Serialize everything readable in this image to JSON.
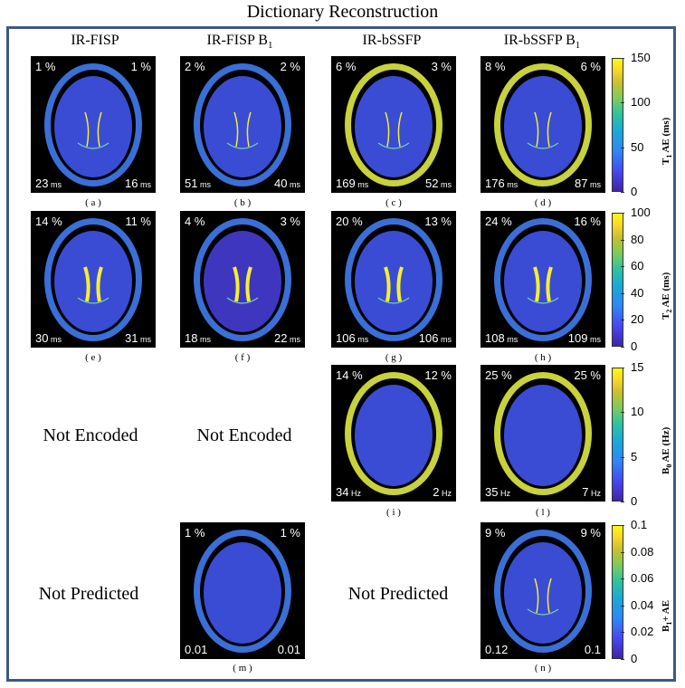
{
  "title": "Dictionary Reconstruction",
  "columns": [
    "IR-FISP",
    "IR-FISP B",
    "IR-bSSFP",
    "IR-bSSFP B"
  ],
  "column_subscript": "1",
  "rows": [
    [
      {
        "tl": "1 %",
        "tr": "1 %",
        "bl": "23",
        "br": "16",
        "unit": "ms",
        "cap": "( a )"
      },
      {
        "tl": "2 %",
        "tr": "2 %",
        "bl": "51",
        "br": "40",
        "unit": "ms",
        "cap": "( b )"
      },
      {
        "tl": "6 %",
        "tr": "3 %",
        "bl": "169",
        "br": "52",
        "unit": "ms",
        "cap": "( c )"
      },
      {
        "tl": "8 %",
        "tr": "6 %",
        "bl": "176",
        "br": "87",
        "unit": "ms",
        "cap": "( d )"
      }
    ],
    [
      {
        "tl": "14 %",
        "tr": "11 %",
        "bl": "30",
        "br": "31",
        "unit": "ms",
        "cap": "( e )"
      },
      {
        "tl": "4 %",
        "tr": "3 %",
        "bl": "18",
        "br": "22",
        "unit": "ms",
        "cap": "( f )"
      },
      {
        "tl": "20 %",
        "tr": "13 %",
        "bl": "106",
        "br": "106",
        "unit": "ms",
        "cap": "( g )"
      },
      {
        "tl": "24 %",
        "tr": "16 %",
        "bl": "108",
        "br": "109",
        "unit": "ms",
        "cap": "( h )"
      }
    ],
    [
      null,
      null,
      {
        "tl": "14 %",
        "tr": "12 %",
        "bl": "34",
        "br": "2",
        "unit": "Hz",
        "cap": "( i )"
      },
      {
        "tl": "25 %",
        "tr": "25 %",
        "bl": "35",
        "br": "7",
        "unit": "Hz",
        "cap": "( l )"
      }
    ],
    [
      null,
      {
        "tl": "1 %",
        "tr": "1 %",
        "bl": "0.01",
        "br": "0.01",
        "unit": "",
        "cap": "( m )"
      },
      null,
      {
        "tl": "9 %",
        "tr": "9 %",
        "bl": "0.12",
        "br": "0.1",
        "unit": "",
        "cap": "( n )"
      }
    ]
  ],
  "messages": {
    "not_encoded": "Not Encoded",
    "not_predicted": "Not Predicted"
  },
  "colorbars": [
    {
      "label": "T",
      "sub": "1",
      "rest": " AE (ms)",
      "ticks": [
        "150",
        "100",
        "50",
        "0"
      ]
    },
    {
      "label": "T",
      "sub": "2",
      "rest": " AE (ms)",
      "ticks": [
        "100",
        "80",
        "60",
        "40",
        "20",
        "0"
      ]
    },
    {
      "label": "B",
      "sub": "0",
      "rest": " AE (Hz)",
      "ticks": [
        "15",
        "10",
        "5",
        "0"
      ]
    },
    {
      "label": "B",
      "sub": "1",
      "rest": "+ AE",
      "ticks": [
        "0.1",
        "0.08",
        "0.06",
        "0.04",
        "0.02",
        "0"
      ]
    }
  ],
  "colors": {
    "frame": "#3c5a80",
    "background_map": "#3e3fd0",
    "high": "#f9fb0e"
  }
}
